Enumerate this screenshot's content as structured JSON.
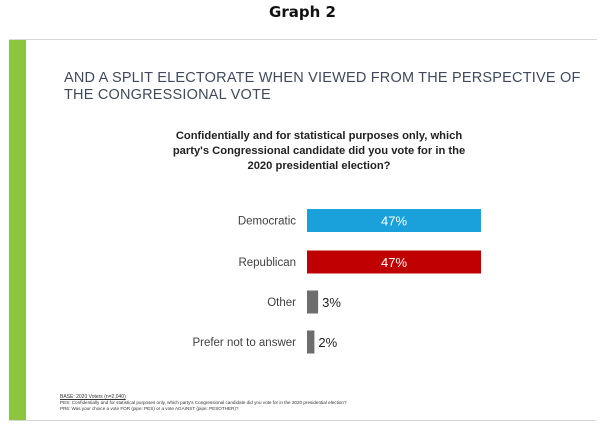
{
  "header": {
    "graph_label": "Graph 2"
  },
  "slide": {
    "title": "AND A SPLIT ELECTORATE WHEN VIEWED FROM THE PERSPECTIVE OF THE CONGRESSIONAL VOTE",
    "question": "Confidentially and for statistical purposes only, which party's Congressional candidate did you vote for in the 2020 presidential election?",
    "base_note": "BASE: 2020 Voters (n=2,040)",
    "footnote_1": "PES: Confidentially and for statistical purposes only, which party's Congressional candidate did you vote for in the 2020 presidential election?",
    "footnote_2": "PR6: Was your choice a vote FOR (pipe: PES) or a vote AGAINST (pipe: PESOTHER)?"
  },
  "colors": {
    "accent": "#8cc63f",
    "democratic": "#1aa0da",
    "republican": "#c00000",
    "other": "#6d6d6d"
  },
  "chart_data": {
    "type": "bar",
    "orientation": "horizontal",
    "categories": [
      "Democratic",
      "Republican",
      "Other",
      "Prefer not to answer"
    ],
    "values": [
      47,
      47,
      3,
      2
    ],
    "value_labels": [
      "47%",
      "47%",
      "3%",
      "2%"
    ],
    "bar_colors": [
      "#1aa0da",
      "#c00000",
      "#6d6d6d",
      "#6d6d6d"
    ],
    "title": "Confidentially and for statistical purposes only, which party's Congressional candidate did you vote for in the 2020 presidential election?",
    "xlim": [
      0,
      47
    ],
    "grid": false,
    "legend": "none"
  }
}
